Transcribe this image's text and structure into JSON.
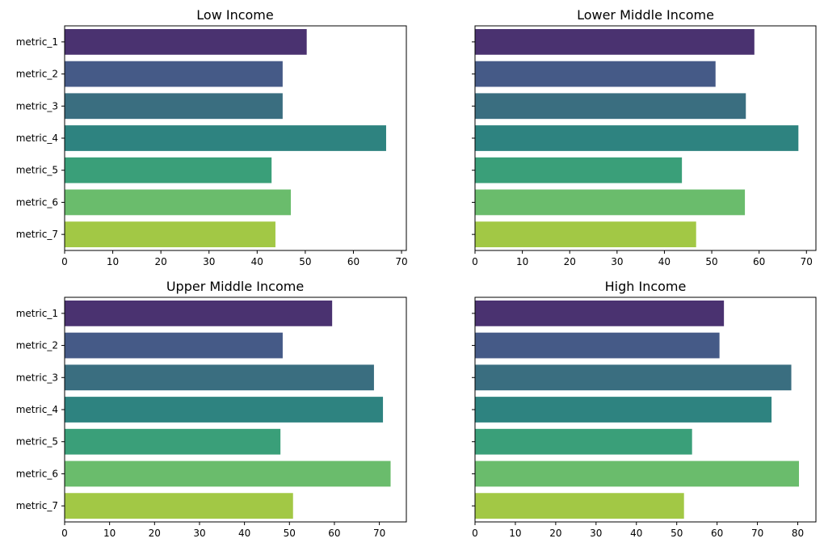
{
  "chart_data": [
    {
      "type": "bar",
      "orientation": "horizontal",
      "title": "Low Income",
      "categories": [
        "metric_1",
        "metric_2",
        "metric_3",
        "metric_4",
        "metric_5",
        "metric_6",
        "metric_7"
      ],
      "values": [
        50.3,
        45.3,
        45.3,
        66.8,
        43.0,
        47.0,
        43.8
      ],
      "xlim": [
        0,
        71
      ],
      "xticks": [
        0,
        10,
        20,
        30,
        40,
        50,
        60,
        70
      ],
      "show_category_labels": true,
      "grid": false
    },
    {
      "type": "bar",
      "orientation": "horizontal",
      "title": "Lower Middle Income",
      "categories": [
        "metric_1",
        "metric_2",
        "metric_3",
        "metric_4",
        "metric_5",
        "metric_6",
        "metric_7"
      ],
      "values": [
        59.0,
        50.8,
        57.2,
        68.3,
        43.7,
        57.0,
        46.7
      ],
      "xlim": [
        0,
        72
      ],
      "xticks": [
        0,
        10,
        20,
        30,
        40,
        50,
        60,
        70
      ],
      "show_category_labels": false,
      "grid": false
    },
    {
      "type": "bar",
      "orientation": "horizontal",
      "title": "Upper Middle Income",
      "categories": [
        "metric_1",
        "metric_2",
        "metric_3",
        "metric_4",
        "metric_5",
        "metric_6",
        "metric_7"
      ],
      "values": [
        59.5,
        48.5,
        68.8,
        70.8,
        48.0,
        72.5,
        50.8
      ],
      "xlim": [
        0,
        76
      ],
      "xticks": [
        0,
        10,
        20,
        30,
        40,
        50,
        60,
        70
      ],
      "show_category_labels": true,
      "grid": false
    },
    {
      "type": "bar",
      "orientation": "horizontal",
      "title": "High Income",
      "categories": [
        "metric_1",
        "metric_2",
        "metric_3",
        "metric_4",
        "metric_5",
        "metric_6",
        "metric_7"
      ],
      "values": [
        61.7,
        60.6,
        78.4,
        73.5,
        53.8,
        80.3,
        51.8
      ],
      "xlim": [
        0,
        84.5
      ],
      "xticks": [
        0,
        10,
        20,
        30,
        40,
        50,
        60,
        70,
        80
      ],
      "show_category_labels": false,
      "grid": false
    }
  ],
  "colors": [
    "#4a3270",
    "#455a87",
    "#3a6e80",
    "#2e8380",
    "#3a9f79",
    "#6abc6c",
    "#a2c845"
  ]
}
